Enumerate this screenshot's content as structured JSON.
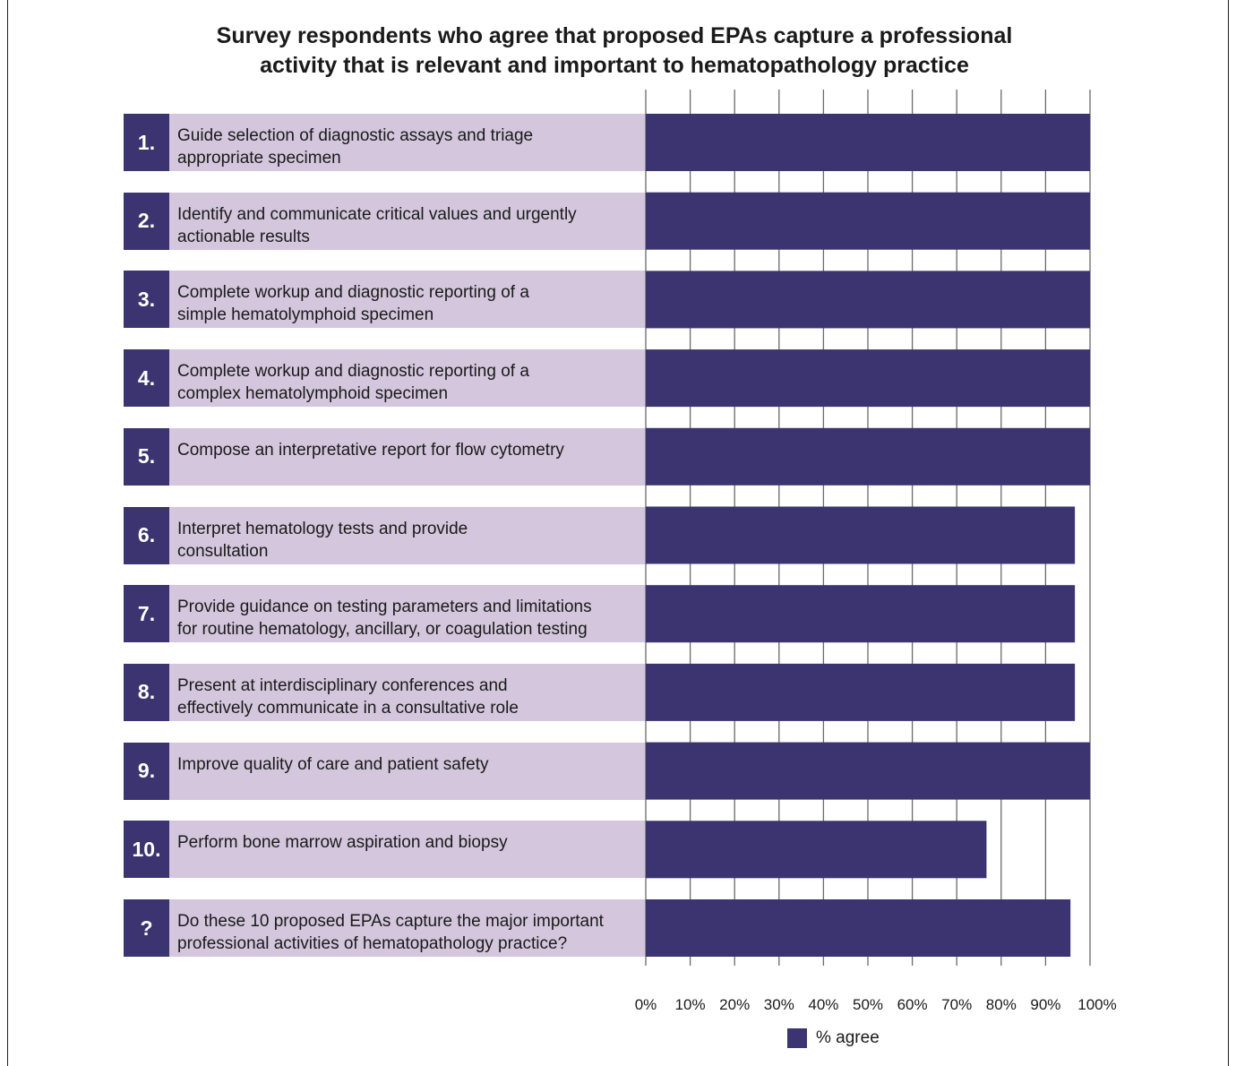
{
  "title": {
    "line1": "Survey respondents who agree that proposed EPAs capture a professional",
    "line2": "activity that is relevant and important to hematopathology practice"
  },
  "colors": {
    "bar": "#3b3470",
    "label_bg": "#d3c6dd",
    "number_bg": "#3b3470"
  },
  "chart_data": {
    "type": "bar",
    "orientation": "horizontal",
    "title": "Survey respondents who agree that proposed EPAs capture a professional activity that is relevant and important to hematopathology practice",
    "xlabel": "",
    "ylabel": "",
    "xlim": [
      0,
      100
    ],
    "x_ticks": [
      "0%",
      "10%",
      "20%",
      "30%",
      "40%",
      "50%",
      "60%",
      "70%",
      "80%",
      "90%",
      "100%"
    ],
    "grid": true,
    "legend": {
      "placement": "bottom",
      "entries": [
        "% agree"
      ]
    },
    "categories": [
      {
        "num": "1.",
        "lines": [
          "Guide selection of diagnostic assays and triage",
          "appropriate specimen"
        ]
      },
      {
        "num": "2.",
        "lines": [
          "Identify and communicate critical values and urgently",
          "actionable results"
        ]
      },
      {
        "num": "3.",
        "lines": [
          "Complete workup and diagnostic reporting of a",
          "simple hematolymphoid specimen"
        ]
      },
      {
        "num": "4.",
        "lines": [
          "Complete workup and diagnostic reporting of a",
          "complex hematolymphoid specimen"
        ]
      },
      {
        "num": "5.",
        "lines": [
          "Compose an interpretative report for flow cytometry"
        ]
      },
      {
        "num": "6.",
        "lines": [
          "Interpret hematology tests and provide",
          "consultation"
        ]
      },
      {
        "num": "7.",
        "lines": [
          "Provide guidance on testing parameters and limitations",
          "for routine hematology, ancillary, or coagulation testing"
        ]
      },
      {
        "num": "8.",
        "lines": [
          "Present at interdisciplinary conferences and",
          "effectively communicate in a consultative role"
        ]
      },
      {
        "num": "9.",
        "lines": [
          " Improve quality of care and patient safety"
        ]
      },
      {
        "num": "10.",
        "lines": [
          "Perform bone marrow aspiration and biopsy"
        ]
      },
      {
        "num": "?",
        "lines": [
          "Do these 10 proposed EPAs capture the major important",
          "professional activities of hematopathology practice?"
        ]
      }
    ],
    "series": [
      {
        "name": "% agree",
        "values": [
          100,
          100,
          100,
          100,
          100,
          96.6,
          96.6,
          96.6,
          100,
          76.7,
          95.6
        ]
      }
    ]
  }
}
